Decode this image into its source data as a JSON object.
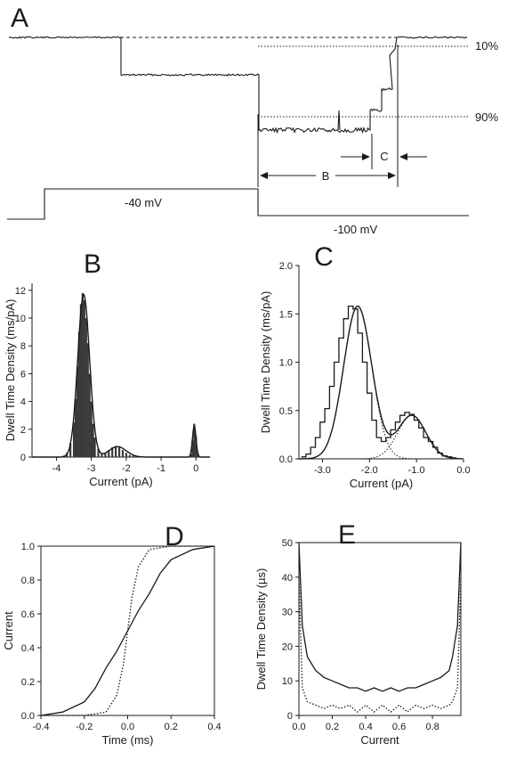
{
  "chart_data": [
    {
      "panel": "A",
      "type": "line",
      "annotations": {
        "pct_top": "10%",
        "pct_bottom": "90%",
        "interval_b": "B",
        "interval_c": "C"
      },
      "voltage_labels": [
        "-40  mV",
        "-100  mV"
      ]
    },
    {
      "panel": "B",
      "type": "bar",
      "xlabel": "Current  (pA)",
      "ylabel": "Dwell Time Density  (ms/pA)",
      "xlim": [
        -4.7,
        0.4
      ],
      "ylim": [
        0,
        12.5
      ],
      "xticks": [
        -4,
        -3,
        -2,
        -1,
        0
      ],
      "yticks": [
        0,
        2,
        4,
        6,
        8,
        10,
        12
      ],
      "series": [
        {
          "values_x": [
            -3.8,
            -3.7,
            -3.6,
            -3.5,
            -3.45,
            -3.4,
            -3.35,
            -3.3,
            -3.25,
            -3.2,
            -3.15,
            -3.1,
            -3.05,
            -3.0,
            -2.95,
            -2.9,
            -2.8,
            -2.7,
            -2.6,
            -2.5,
            -2.4,
            -2.3,
            -2.2,
            -2.1,
            -2.0,
            -1.9,
            -1.8,
            -1.5,
            -1.0,
            -0.5,
            -0.15,
            -0.1,
            -0.05,
            0.0,
            0.05
          ],
          "values_y": [
            0.1,
            0.3,
            1.0,
            2.5,
            4.2,
            6.5,
            9.0,
            11.0,
            11.8,
            11.3,
            10.0,
            8.2,
            6.0,
            4.0,
            2.4,
            1.4,
            0.6,
            0.3,
            0.3,
            0.5,
            0.7,
            0.8,
            0.7,
            0.5,
            0.3,
            0.15,
            0.1,
            0.05,
            0.05,
            0.05,
            0.2,
            1.2,
            2.4,
            1.5,
            0.3
          ]
        }
      ],
      "fit_peaks": [
        {
          "mean": -3.22,
          "sd": 0.17,
          "amp": 11.7
        },
        {
          "mean": -2.25,
          "sd": 0.25,
          "amp": 0.75
        },
        {
          "mean": -0.05,
          "sd": 0.05,
          "amp": 2.3
        }
      ]
    },
    {
      "panel": "C",
      "type": "line",
      "xlabel": "Current  (pA)",
      "ylabel": "Dwell Time Density  (ms/pA)",
      "xlim": [
        -3.5,
        0.0
      ],
      "ylim": [
        0,
        2.0
      ],
      "xticks": [
        -3.0,
        -2.0,
        -1.0,
        0.0
      ],
      "xtick_labels": [
        "-3.0",
        "-2.0",
        "-1.0",
        "0.0"
      ],
      "yticks": [
        0.0,
        0.5,
        1.0,
        1.5,
        2.0
      ],
      "ytick_labels": [
        "0.0",
        "0.5",
        "1.0",
        "1.5",
        "2.0"
      ],
      "histogram": {
        "x": [
          -3.4,
          -3.3,
          -3.2,
          -3.1,
          -3.0,
          -2.9,
          -2.8,
          -2.7,
          -2.6,
          -2.5,
          -2.4,
          -2.3,
          -2.2,
          -2.1,
          -2.0,
          -1.9,
          -1.8,
          -1.7,
          -1.6,
          -1.5,
          -1.4,
          -1.3,
          -1.2,
          -1.1,
          -1.0,
          -0.9,
          -0.8,
          -0.7,
          -0.6,
          -0.5,
          -0.4,
          -0.3,
          -0.2
        ],
        "y": [
          0.02,
          0.05,
          0.12,
          0.22,
          0.38,
          0.52,
          0.75,
          1.0,
          1.25,
          1.45,
          1.58,
          1.55,
          1.3,
          1.0,
          0.68,
          0.4,
          0.22,
          0.18,
          0.22,
          0.3,
          0.38,
          0.45,
          0.48,
          0.46,
          0.4,
          0.32,
          0.22,
          0.18,
          0.12,
          0.06,
          0.03,
          0.02,
          0.01
        ]
      },
      "fit_peaks": [
        {
          "mean": -2.25,
          "sd": 0.3,
          "amp": 1.58
        },
        {
          "mean": -1.1,
          "sd": 0.3,
          "amp": 0.45
        }
      ]
    },
    {
      "panel": "D",
      "type": "line",
      "xlabel": "Time  (ms)",
      "ylabel": "Current",
      "xlim": [
        -0.4,
        0.4
      ],
      "ylim": [
        0,
        1.0
      ],
      "xticks": [
        -0.4,
        -0.2,
        0.0,
        0.2,
        0.4
      ],
      "xtick_labels": [
        "-0.4",
        "-0.2",
        "0.0",
        "0.2",
        "0.4"
      ],
      "yticks": [
        0.0,
        0.2,
        0.4,
        0.6,
        0.8,
        1.0
      ],
      "ytick_labels": [
        "0.0",
        "0.2",
        "0.4",
        "0.6",
        "0.8",
        "1.0"
      ],
      "series": [
        {
          "style": "solid",
          "x": [
            -0.4,
            -0.3,
            -0.2,
            -0.15,
            -0.1,
            -0.05,
            0.0,
            0.05,
            0.1,
            0.15,
            0.2,
            0.3,
            0.4
          ],
          "y": [
            0.0,
            0.02,
            0.08,
            0.16,
            0.28,
            0.38,
            0.5,
            0.62,
            0.72,
            0.84,
            0.92,
            0.98,
            1.0
          ]
        },
        {
          "style": "dotted",
          "x": [
            -0.4,
            -0.2,
            -0.1,
            -0.05,
            -0.02,
            0.0,
            0.02,
            0.05,
            0.1,
            0.2,
            0.4
          ],
          "y": [
            0.0,
            0.0,
            0.02,
            0.12,
            0.3,
            0.5,
            0.7,
            0.88,
            0.98,
            1.0,
            1.0
          ]
        }
      ]
    },
    {
      "panel": "E",
      "type": "line",
      "xlabel": "Current",
      "ylabel": "Dwell Time Density  (µs)",
      "xlim": [
        0.0,
        0.97
      ],
      "ylim": [
        0,
        50
      ],
      "xticks": [
        0.0,
        0.2,
        0.4,
        0.6,
        0.8
      ],
      "xtick_labels": [
        "0.0",
        "0.2",
        "0.4",
        "0.6",
        "0.8"
      ],
      "yticks": [
        0,
        10,
        20,
        30,
        40,
        50
      ],
      "series": [
        {
          "style": "solid",
          "x": [
            0.0,
            0.02,
            0.05,
            0.1,
            0.15,
            0.2,
            0.25,
            0.3,
            0.35,
            0.4,
            0.45,
            0.5,
            0.55,
            0.6,
            0.65,
            0.7,
            0.75,
            0.8,
            0.85,
            0.9,
            0.92,
            0.95,
            0.97
          ],
          "y": [
            50,
            26,
            17,
            13,
            11,
            10,
            9,
            8,
            8,
            7,
            8,
            7,
            8,
            7,
            8,
            8,
            9,
            10,
            11,
            13,
            17,
            26,
            50
          ]
        },
        {
          "style": "dotted",
          "x": [
            0.0,
            0.02,
            0.05,
            0.1,
            0.15,
            0.2,
            0.25,
            0.3,
            0.35,
            0.4,
            0.45,
            0.5,
            0.55,
            0.6,
            0.65,
            0.7,
            0.75,
            0.8,
            0.85,
            0.9,
            0.92,
            0.95,
            0.97
          ],
          "y": [
            40,
            8,
            4,
            3,
            2,
            3,
            2,
            3,
            1,
            3,
            1,
            3,
            1,
            3,
            1,
            3,
            2,
            3,
            2,
            3,
            4,
            8,
            40
          ]
        }
      ]
    }
  ]
}
